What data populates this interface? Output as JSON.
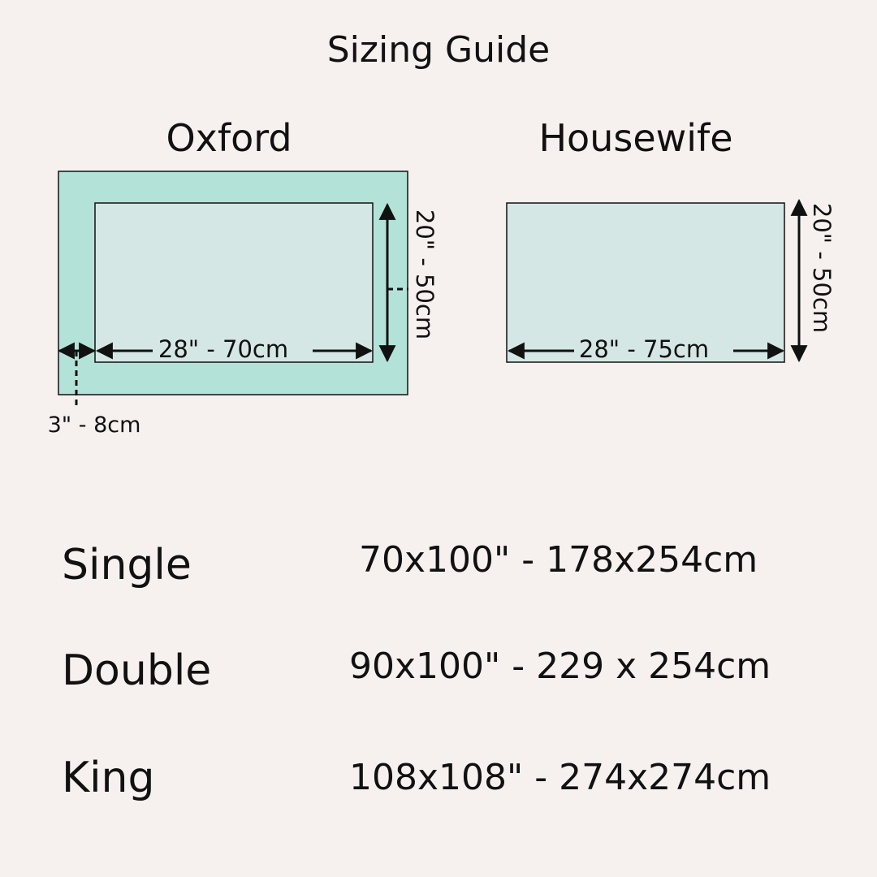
{
  "title": "Sizing Guide",
  "colors": {
    "background": "#f6f1ef",
    "oxford_border": "#b3e3d8",
    "panel_fill": "#d4e7e5",
    "line": "#111111"
  },
  "diagrams": {
    "oxford": {
      "title": "Oxford",
      "width_label": "28\" - 70cm",
      "height_label": "20\" - 50cm",
      "border_label": "3\" - 8cm"
    },
    "housewife": {
      "title": "Housewife",
      "width_label": "28\" - 75cm",
      "height_label": "20\" - 50cm"
    }
  },
  "sizes": [
    {
      "name": "Single",
      "dimensions": "70x100\" - 178x254cm"
    },
    {
      "name": "Double",
      "dimensions": "90x100\" - 229 x 254cm"
    },
    {
      "name": "King",
      "dimensions": "108x108\" - 274x274cm"
    }
  ]
}
